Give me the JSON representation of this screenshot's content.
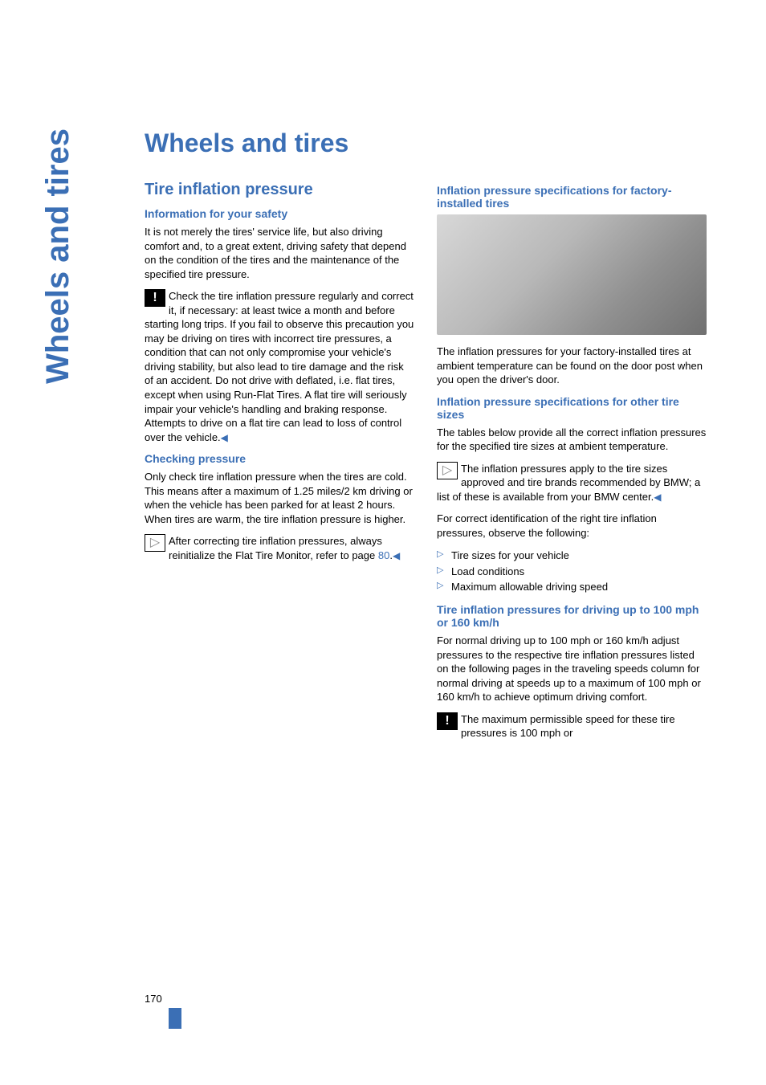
{
  "colors": {
    "accent": "#3b6fb5",
    "text": "#000000",
    "background": "#ffffff",
    "imagePlaceholder": [
      "#d8d8d8",
      "#707070"
    ]
  },
  "typography": {
    "vertical_heading_fontsize": 40,
    "main_title_fontsize": 32,
    "h1_fontsize": 20,
    "h2_fontsize": 14,
    "body_fontsize": 13
  },
  "page_number": "170",
  "vertical_heading": "Wheels and tires",
  "main_title": "Wheels and tires",
  "left": {
    "section_title": "Tire inflation pressure",
    "sub1_title": "Information for your safety",
    "sub1_p1": "It is not merely the tires' service life, but also driving comfort and, to a great extent, driving safety that depend on the condition of the tires and the maintenance of the specified tire pressure.",
    "sub1_p2": "Check the tire inflation pressure regularly and correct it, if necessary: at least twice a month and before starting long trips. If you fail to observe this precaution you may be driving on tires with incorrect tire pressures, a condition that can not only compromise your vehicle's driving stability, but also lead to tire damage and the risk of an accident. Do not drive with deflated, i.e. flat tires, except when using Run-Flat Tires. A flat tire will seriously impair your vehicle's handling and braking response. Attempts to drive on a flat tire can lead to loss of control over the vehicle.",
    "sub1_end_arrow": "◀",
    "sub2_title": "Checking pressure",
    "sub2_p1": "Only check tire inflation pressure when the tires are cold. This means after a maximum of 1.25 miles/2 km driving or when the vehicle has been parked for at least 2 hours. When tires are warm, the tire inflation pressure is higher.",
    "sub2_p2a": "After correcting tire inflation pressures, always reinitialize the Flat Tire Monitor, refer to page ",
    "sub2_page_ref": "80",
    "sub2_p2b": ".",
    "sub2_end_arrow": "◀"
  },
  "right": {
    "sub1_title": "Inflation pressure specifications for factory-installed tires",
    "sub1_p1": "The inflation pressures for your factory-installed tires at ambient temperature can be found on the door post when you open the driver's door.",
    "sub2_title": "Inflation pressure specifications for other tire sizes",
    "sub2_p1": "The tables below provide all the correct inflation pressures for the specified tire sizes at ambient temperature.",
    "sub2_p2": "The inflation pressures apply to the tire sizes approved and tire brands recommended by BMW; a list of these is available from your BMW center.",
    "sub2_end_arrow": "◀",
    "sub2_p3": "For correct identification of the right tire inflation pressures, observe the following:",
    "bullets": [
      "Tire sizes for your vehicle",
      "Load conditions",
      "Maximum allowable driving speed"
    ],
    "sub3_title": "Tire inflation pressures for driving up to 100 mph or 160 km/h",
    "sub3_p1": "For normal driving up to 100 mph or 160 km/h adjust pressures to the respective tire inflation pressures listed on the following pages in the traveling speeds column for normal driving at speeds up to a maximum of 100 mph or 160 km/h to achieve optimum driving comfort.",
    "sub3_p2": "The maximum permissible speed for these tire pressures is 100 mph or"
  },
  "icons": {
    "warning": "!",
    "info": "▷"
  }
}
